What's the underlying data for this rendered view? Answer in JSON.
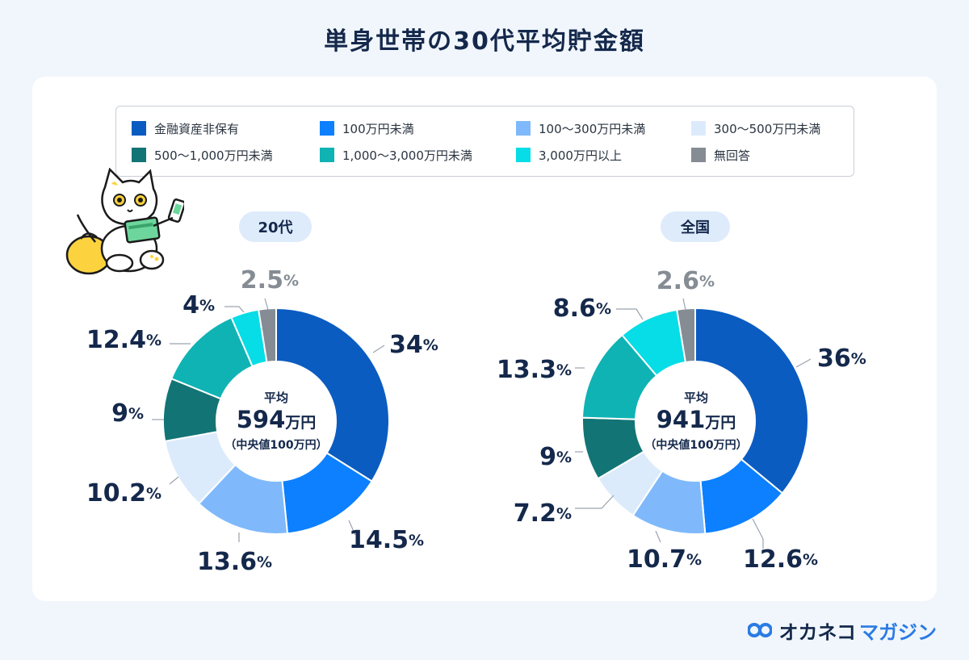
{
  "title": "単身世帯の30代平均貯金額",
  "legend": [
    {
      "label": "金融資産非保有",
      "color": "#0b5cc1"
    },
    {
      "label": "100万円未満",
      "color": "#0c80ff"
    },
    {
      "label": "100〜300万円未満",
      "color": "#7fb9fb"
    },
    {
      "label": "300〜500万円未満",
      "color": "#dcebfc"
    },
    {
      "label": "500〜1,000万円未満",
      "color": "#137475"
    },
    {
      "label": "1,000〜3,000万円未満",
      "color": "#0fb3b4"
    },
    {
      "label": "3,000万円以上",
      "color": "#06dde6"
    },
    {
      "label": "無回答",
      "color": "#858c94"
    }
  ],
  "chart_data": [
    {
      "type": "pie",
      "title": "20代",
      "categories": [
        "金融資産非保有",
        "100万円未満",
        "100〜300万円未満",
        "300〜500万円未満",
        "500〜1,000万円未満",
        "1,000〜3,000万円未満",
        "3,000万円以上",
        "無回答"
      ],
      "values": [
        34,
        14.5,
        13.6,
        10.2,
        9,
        12.4,
        4,
        2.5
      ],
      "value_labels": [
        "34",
        "14.5",
        "13.6",
        "10.2",
        "9",
        "12.4",
        "4",
        "2.5"
      ],
      "percent_sign": "%",
      "center": {
        "label": "平均",
        "value": "594",
        "unit": "万円",
        "note": "（中央値100万円）"
      }
    },
    {
      "type": "pie",
      "title": "全国",
      "categories": [
        "金融資産非保有",
        "100万円未満",
        "100〜300万円未満",
        "300〜500万円未満",
        "500〜1,000万円未満",
        "1,000〜3,000万円未満",
        "3,000万円以上",
        "無回答"
      ],
      "values": [
        36,
        12.6,
        10.7,
        7.2,
        9,
        13.3,
        8.6,
        2.6
      ],
      "value_labels": [
        "36",
        "12.6",
        "10.7",
        "7.2",
        "9",
        "13.3",
        "8.6",
        "2.6"
      ],
      "percent_sign": "%",
      "center": {
        "label": "平均",
        "value": "941",
        "unit": "万円",
        "note": "（中央値100万円）"
      }
    }
  ],
  "brand": {
    "part1": "オカネコ",
    "part2": "マガジン",
    "color1": "#14284b",
    "color2": "#2a7be4"
  }
}
